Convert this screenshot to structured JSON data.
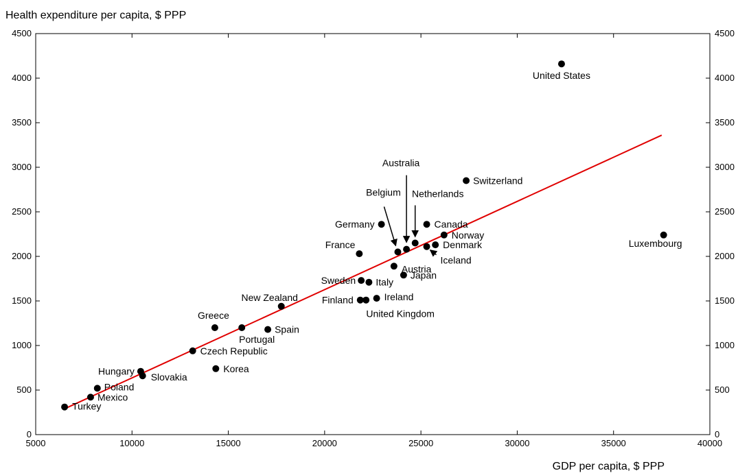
{
  "chart_data": {
    "type": "scatter",
    "ylabel": "Health expenditure per capita, $ PPP",
    "xlabel": "GDP per capita, $ PPP",
    "xlim": [
      5000,
      40000
    ],
    "ylim": [
      0,
      4500
    ],
    "xticks": [
      5000,
      10000,
      15000,
      20000,
      25000,
      30000,
      35000,
      40000
    ],
    "yticks": [
      0,
      500,
      1000,
      1500,
      2000,
      2500,
      3000,
      3500,
      4000,
      4500
    ],
    "grid": false,
    "y_axis_mirrored_right": true,
    "marker_color": "#000000",
    "line_color": "#e00000",
    "points": [
      {
        "label": "United States",
        "x": 32300,
        "y": 4160
      },
      {
        "label": "Luxembourg",
        "x": 37600,
        "y": 2240
      },
      {
        "label": "Switzerland",
        "x": 27350,
        "y": 2850
      },
      {
        "label": "Australia",
        "x": 24250,
        "y": 2080
      },
      {
        "label": "Belgium",
        "x": 23800,
        "y": 2050
      },
      {
        "label": "Netherlands",
        "x": 24700,
        "y": 2150
      },
      {
        "label": "Canada",
        "x": 25300,
        "y": 2360
      },
      {
        "label": "Norway",
        "x": 26200,
        "y": 2240
      },
      {
        "label": "Denmark",
        "x": 25750,
        "y": 2130
      },
      {
        "label": "Iceland",
        "x": 25300,
        "y": 2110
      },
      {
        "label": "Germany",
        "x": 22950,
        "y": 2360
      },
      {
        "label": "France",
        "x": 21800,
        "y": 2030
      },
      {
        "label": "Austria",
        "x": 23600,
        "y": 1890
      },
      {
        "label": "Japan",
        "x": 24100,
        "y": 1790
      },
      {
        "label": "Sweden",
        "x": 21900,
        "y": 1730
      },
      {
        "label": "Italy",
        "x": 22300,
        "y": 1710
      },
      {
        "label": "Finland",
        "x": 21850,
        "y": 1510
      },
      {
        "label": "United Kingdom",
        "x": 22150,
        "y": 1510
      },
      {
        "label": "Ireland",
        "x": 22700,
        "y": 1530
      },
      {
        "label": "New Zealand",
        "x": 17750,
        "y": 1440
      },
      {
        "label": "Greece",
        "x": 14300,
        "y": 1200
      },
      {
        "label": "Portugal",
        "x": 15700,
        "y": 1200
      },
      {
        "label": "Spain",
        "x": 17050,
        "y": 1180
      },
      {
        "label": "Czech Republic",
        "x": 13150,
        "y": 940
      },
      {
        "label": "Korea",
        "x": 14350,
        "y": 740
      },
      {
        "label": "Hungary",
        "x": 10450,
        "y": 710
      },
      {
        "label": "Slovakia",
        "x": 10550,
        "y": 660
      },
      {
        "label": "Poland",
        "x": 8200,
        "y": 520
      },
      {
        "label": "Mexico",
        "x": 7850,
        "y": 420
      },
      {
        "label": "Turkey",
        "x": 6500,
        "y": 310
      }
    ],
    "trendline": {
      "x": [
        6500,
        37500
      ],
      "y": [
        290,
        3360
      ]
    }
  }
}
